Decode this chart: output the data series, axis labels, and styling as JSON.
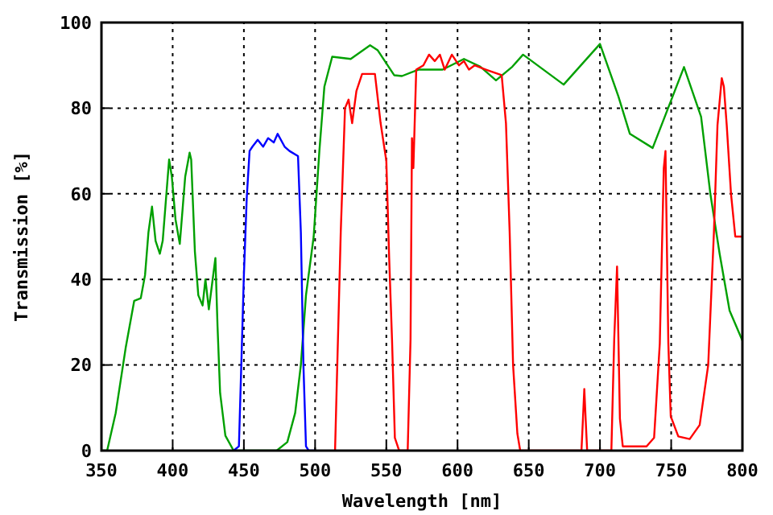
{
  "chart_data": {
    "type": "line",
    "xlabel": "Wavelength [nm]",
    "ylabel": "Transmission [%]",
    "xlim": [
      350,
      800
    ],
    "ylim": [
      0,
      100
    ],
    "xticks": [
      350,
      400,
      450,
      500,
      550,
      600,
      650,
      700,
      750,
      800
    ],
    "yticks": [
      0,
      20,
      40,
      60,
      80,
      100
    ],
    "grid": true,
    "marker": "none",
    "line_style": "solid",
    "series": [
      {
        "color": "#00a000",
        "x": [
          350,
          354,
          360,
          367,
          373,
          377.6,
          380.6,
          383,
          385.5,
          388,
          391,
          393,
          397.5,
          399.4,
          402,
          405,
          408.8,
          411.9,
          413,
          415.6,
          418,
          421,
          423,
          425.4,
          427.7,
          430,
          431.5,
          433.3,
          437,
          442.8,
          473,
          480.5,
          486,
          490,
          493.6,
          499,
          503,
          506.5,
          512,
          525,
          538.6,
          544,
          555.5,
          561,
          572.5,
          589.5,
          604.5,
          616,
          627,
          638.5,
          646,
          674.5,
          700,
          713,
          721,
          737,
          759,
          771,
          777.5,
          784,
          791,
          800
        ],
        "values": [
          0,
          0,
          8.8,
          24,
          35,
          35.6,
          41,
          51,
          57,
          49,
          46,
          49,
          68,
          64,
          54,
          48.3,
          64,
          69.6,
          68,
          46.5,
          36.3,
          33.9,
          40,
          33,
          39,
          45,
          29,
          13.5,
          3.5,
          0,
          0,
          2,
          8.8,
          20,
          36.3,
          50,
          70,
          85,
          92,
          91.5,
          94.7,
          93.5,
          87.7,
          87.5,
          89,
          89,
          91.5,
          89.7,
          86.5,
          89.7,
          92.5,
          85.5,
          95,
          82.7,
          74,
          70.7,
          89.6,
          78,
          60,
          46,
          32.7,
          25.7
        ]
      },
      {
        "color": "#0000ff",
        "x": [
          442.8,
          446.5,
          448.4,
          450,
          452,
          454,
          456,
          459.7,
          463.5,
          467,
          471,
          473.7,
          478.6,
          482,
          488,
          490,
          491.8,
          493.6,
          495.5,
          500
        ],
        "values": [
          0,
          1,
          22.5,
          41,
          59,
          70,
          71,
          72.6,
          71,
          73,
          72,
          74,
          71,
          70,
          68.8,
          51,
          20,
          1,
          0,
          0
        ]
      },
      {
        "color": "#ff0000",
        "x": [
          514,
          518,
          521,
          523.5,
          526,
          529,
          533,
          542,
          546,
          550,
          552,
          554,
          556,
          559,
          565,
          567,
          568,
          569,
          571,
          576,
          580,
          584,
          587.6,
          591,
          596,
          601,
          604.5,
          608,
          612,
          620,
          631,
          634,
          636.6,
          639,
          642,
          644,
          687,
          688,
          689,
          690,
          691,
          708,
          710,
          712,
          714,
          716,
          732.7,
          738,
          742,
          744.8,
          746,
          748,
          749.7,
          755,
          763,
          770,
          776,
          780,
          782.5,
          785.5,
          787,
          789,
          792,
          795,
          797.5,
          800
        ],
        "values": [
          0,
          51,
          80,
          82,
          76.5,
          84,
          88,
          88,
          76.5,
          67.7,
          45,
          26,
          3,
          0,
          0,
          26,
          73,
          66,
          89,
          90,
          92.5,
          91,
          92.5,
          89,
          92.5,
          90,
          91,
          89,
          90,
          89,
          87.7,
          76.5,
          51,
          20,
          4,
          0,
          0,
          7,
          14.4,
          7,
          0,
          0,
          26,
          43,
          7.5,
          1,
          1,
          3,
          25,
          66,
          70,
          25,
          8,
          3.3,
          2.7,
          6,
          20,
          51,
          76,
          87,
          85,
          76,
          60,
          50,
          50,
          50
        ]
      }
    ]
  }
}
